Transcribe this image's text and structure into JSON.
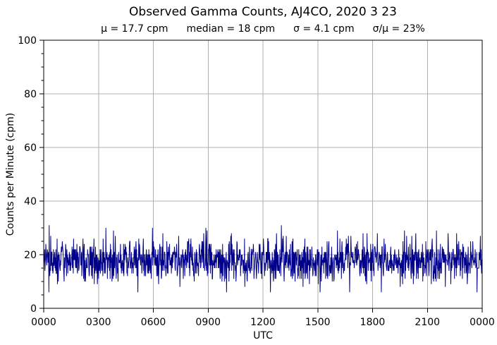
{
  "header": {
    "title": "Observed Gamma Counts, AJ4CO, 2020 3 23",
    "stats": [
      "μ = 17.7 cpm",
      "median = 18 cpm",
      "σ = 4.1 cpm",
      "σ/μ = 23%"
    ]
  },
  "chart_data": {
    "type": "line",
    "title": "Observed Gamma Counts, AJ4CO, 2020 3 23",
    "subtitle": "μ = 17.7 cpm     median = 18 cpm     σ = 4.1 cpm     σ/μ = 23%",
    "xlabel": "UTC",
    "ylabel": "Counts per Minute (cpm)",
    "x_tick_labels": [
      "0000",
      "0300",
      "0600",
      "0900",
      "1200",
      "1500",
      "1800",
      "2100",
      "0000"
    ],
    "y_ticks": [
      0,
      20,
      40,
      60,
      80,
      100
    ],
    "y_minor_step": 5,
    "ylim": [
      0,
      100
    ],
    "x_span_hours": 24,
    "n_points": 1440,
    "stats": {
      "mean_cpm": 17.7,
      "median_cpm": 18,
      "sigma_cpm": 4.1,
      "sigma_over_mu_pct": 23
    },
    "observed_min_cpm": 6,
    "observed_max_cpm": 31,
    "grid": true,
    "legend": "none",
    "line_color": "#00008B",
    "grid_color": "#b0b0b0",
    "spine_color": "#000000",
    "text_color": "#000000"
  }
}
